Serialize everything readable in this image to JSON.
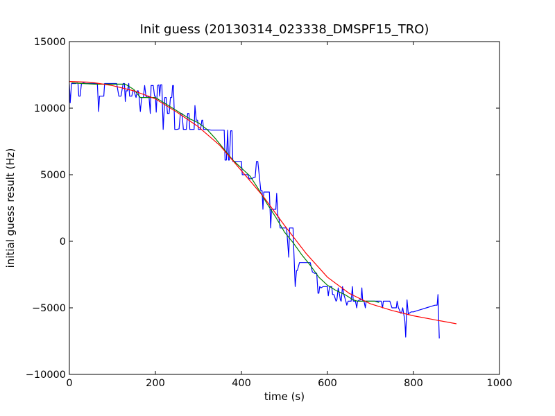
{
  "chart_data": {
    "type": "line",
    "title": "Init guess (20130314_023338_DMSPF15_TRO)",
    "xlabel": "time (s)",
    "ylabel": "initial guess result (Hz)",
    "xlim": [
      0,
      1000
    ],
    "ylim": [
      -10000,
      15000
    ],
    "x_ticks": [
      0,
      200,
      400,
      600,
      800,
      1000
    ],
    "y_ticks": [
      -10000,
      -5000,
      0,
      5000,
      10000,
      15000
    ],
    "x_tick_labels": [
      "0",
      "200",
      "400",
      "600",
      "800",
      "1000"
    ],
    "y_tick_labels": [
      "−10000",
      "−5000",
      "0",
      "5000",
      "10000",
      "15000"
    ],
    "grid": false,
    "legend": "none",
    "series": [
      {
        "color": "#0000ff",
        "points": [
          [
            0,
            11800
          ],
          [
            2,
            10400
          ],
          [
            5,
            11850
          ],
          [
            8,
            11850
          ],
          [
            15,
            11850
          ],
          [
            18,
            11900
          ],
          [
            20,
            11850
          ],
          [
            22,
            10900
          ],
          [
            25,
            10900
          ],
          [
            28,
            11850
          ],
          [
            30,
            11850
          ],
          [
            32,
            11900
          ],
          [
            38,
            11850
          ],
          [
            40,
            11850
          ],
          [
            45,
            11850
          ],
          [
            50,
            11850
          ],
          [
            55,
            11850
          ],
          [
            60,
            11850
          ],
          [
            65,
            11850
          ],
          [
            68,
            9750
          ],
          [
            70,
            10900
          ],
          [
            72,
            10900
          ],
          [
            80,
            10900
          ],
          [
            82,
            11850
          ],
          [
            90,
            11850
          ],
          [
            95,
            11850
          ],
          [
            100,
            11850
          ],
          [
            105,
            11850
          ],
          [
            110,
            11850
          ],
          [
            115,
            10900
          ],
          [
            120,
            10900
          ],
          [
            125,
            11850
          ],
          [
            128,
            11850
          ],
          [
            130,
            10500
          ],
          [
            132,
            11300
          ],
          [
            135,
            11300
          ],
          [
            138,
            11850
          ],
          [
            140,
            10900
          ],
          [
            145,
            10900
          ],
          [
            148,
            11300
          ],
          [
            150,
            11300
          ],
          [
            155,
            10800
          ],
          [
            158,
            11300
          ],
          [
            160,
            11300
          ],
          [
            162,
            10900
          ],
          [
            165,
            9750
          ],
          [
            168,
            10800
          ],
          [
            172,
            10800
          ],
          [
            175,
            11700
          ],
          [
            178,
            10900
          ],
          [
            182,
            10800
          ],
          [
            185,
            10900
          ],
          [
            188,
            9600
          ],
          [
            190,
            11700
          ],
          [
            195,
            11700
          ],
          [
            198,
            10900
          ],
          [
            200,
            10900
          ],
          [
            202,
            9700
          ],
          [
            205,
            11700
          ],
          [
            208,
            11750
          ],
          [
            210,
            10900
          ],
          [
            212,
            11750
          ],
          [
            215,
            11750
          ],
          [
            218,
            8400
          ],
          [
            222,
            10800
          ],
          [
            225,
            10800
          ],
          [
            228,
            9600
          ],
          [
            232,
            9600
          ],
          [
            235,
            10800
          ],
          [
            238,
            10800
          ],
          [
            240,
            11700
          ],
          [
            242,
            11700
          ],
          [
            245,
            8400
          ],
          [
            250,
            8400
          ],
          [
            255,
            8450
          ],
          [
            258,
            9600
          ],
          [
            262,
            9600
          ],
          [
            265,
            8400
          ],
          [
            270,
            8400
          ],
          [
            272,
            8400
          ],
          [
            275,
            9600
          ],
          [
            278,
            9600
          ],
          [
            280,
            8400
          ],
          [
            285,
            8400
          ],
          [
            290,
            8400
          ],
          [
            292,
            10200
          ],
          [
            295,
            9100
          ],
          [
            298,
            9100
          ],
          [
            300,
            8400
          ],
          [
            305,
            8400
          ],
          [
            308,
            9100
          ],
          [
            310,
            9100
          ],
          [
            312,
            8400
          ],
          [
            320,
            8400
          ],
          [
            330,
            8350
          ],
          [
            340,
            8350
          ],
          [
            350,
            8350
          ],
          [
            360,
            8350
          ],
          [
            362,
            6100
          ],
          [
            365,
            6100
          ],
          [
            368,
            8350
          ],
          [
            370,
            6100
          ],
          [
            372,
            6100
          ],
          [
            375,
            8300
          ],
          [
            378,
            8300
          ],
          [
            380,
            6000
          ],
          [
            385,
            6000
          ],
          [
            390,
            6000
          ],
          [
            395,
            6000
          ],
          [
            400,
            6000
          ],
          [
            402,
            5000
          ],
          [
            405,
            5000
          ],
          [
            410,
            5000
          ],
          [
            415,
            5000
          ],
          [
            418,
            4700
          ],
          [
            420,
            4700
          ],
          [
            425,
            4700
          ],
          [
            428,
            4800
          ],
          [
            432,
            4800
          ],
          [
            435,
            6000
          ],
          [
            438,
            6000
          ],
          [
            442,
            4800
          ],
          [
            445,
            3800
          ],
          [
            448,
            3800
          ],
          [
            450,
            2400
          ],
          [
            452,
            3700
          ],
          [
            455,
            3700
          ],
          [
            460,
            3700
          ],
          [
            465,
            3700
          ],
          [
            468,
            1000
          ],
          [
            470,
            2400
          ],
          [
            472,
            2400
          ],
          [
            475,
            2400
          ],
          [
            480,
            2400
          ],
          [
            482,
            3600
          ],
          [
            485,
            1800
          ],
          [
            487,
            1800
          ],
          [
            490,
            1000
          ],
          [
            495,
            1000
          ],
          [
            500,
            1000
          ],
          [
            505,
            1000
          ],
          [
            510,
            -1200
          ],
          [
            512,
            1000
          ],
          [
            515,
            1000
          ],
          [
            520,
            1000
          ],
          [
            522,
            -800
          ],
          [
            525,
            -3400
          ],
          [
            528,
            -2200
          ],
          [
            530,
            -2200
          ],
          [
            535,
            -1600
          ],
          [
            540,
            -1600
          ],
          [
            545,
            -1600
          ],
          [
            550,
            -1600
          ],
          [
            555,
            -1600
          ],
          [
            560,
            -1600
          ],
          [
            565,
            -2300
          ],
          [
            570,
            -2400
          ],
          [
            575,
            -2400
          ],
          [
            578,
            -3900
          ],
          [
            580,
            -3900
          ],
          [
            582,
            -3400
          ],
          [
            585,
            -3500
          ],
          [
            590,
            -3400
          ],
          [
            595,
            -3400
          ],
          [
            600,
            -3400
          ],
          [
            602,
            -4100
          ],
          [
            605,
            -3400
          ],
          [
            610,
            -3400
          ],
          [
            612,
            -4000
          ],
          [
            615,
            -4000
          ],
          [
            620,
            -4500
          ],
          [
            622,
            -4400
          ],
          [
            625,
            -3500
          ],
          [
            628,
            -4000
          ],
          [
            630,
            -4400
          ],
          [
            632,
            -4500
          ],
          [
            635,
            -3400
          ],
          [
            638,
            -4000
          ],
          [
            642,
            -4400
          ],
          [
            645,
            -4800
          ],
          [
            648,
            -4500
          ],
          [
            650,
            -4500
          ],
          [
            655,
            -4500
          ],
          [
            658,
            -3400
          ],
          [
            660,
            -4500
          ],
          [
            665,
            -4500
          ],
          [
            668,
            -5000
          ],
          [
            670,
            -4500
          ],
          [
            675,
            -4400
          ],
          [
            678,
            -4400
          ],
          [
            680,
            -3500
          ],
          [
            682,
            -4500
          ],
          [
            685,
            -4500
          ],
          [
            688,
            -5000
          ],
          [
            690,
            -4500
          ],
          [
            695,
            -4500
          ],
          [
            700,
            -4500
          ],
          [
            710,
            -4500
          ],
          [
            720,
            -4500
          ],
          [
            725,
            -4500
          ],
          [
            728,
            -5000
          ],
          [
            730,
            -4500
          ],
          [
            735,
            -4500
          ],
          [
            740,
            -4500
          ],
          [
            745,
            -4500
          ],
          [
            750,
            -5000
          ],
          [
            755,
            -5000
          ],
          [
            760,
            -5000
          ],
          [
            762,
            -4500
          ],
          [
            765,
            -5000
          ],
          [
            768,
            -5200
          ],
          [
            770,
            -5400
          ],
          [
            772,
            -5400
          ],
          [
            775,
            -5000
          ],
          [
            778,
            -5600
          ],
          [
            780,
            -6000
          ],
          [
            782,
            -7200
          ],
          [
            785,
            -4400
          ],
          [
            788,
            -5500
          ],
          [
            790,
            -5400
          ],
          [
            795,
            -5300
          ],
          [
            800,
            -5300
          ],
          [
            810,
            -5200
          ],
          [
            820,
            -5100
          ],
          [
            830,
            -5000
          ],
          [
            840,
            -4900
          ],
          [
            850,
            -4800
          ],
          [
            855,
            -4800
          ],
          [
            857,
            -4000
          ],
          [
            860,
            -7300
          ]
        ]
      },
      {
        "color": "#008000",
        "points": [
          [
            5,
            11900
          ],
          [
            30,
            11850
          ],
          [
            60,
            11800
          ],
          [
            100,
            11800
          ],
          [
            130,
            11800
          ],
          [
            150,
            11400
          ],
          [
            165,
            10800
          ],
          [
            180,
            10800
          ],
          [
            200,
            10800
          ],
          [
            220,
            10400
          ],
          [
            240,
            10000
          ],
          [
            260,
            9600
          ],
          [
            280,
            9200
          ],
          [
            300,
            8900
          ],
          [
            320,
            8400
          ],
          [
            340,
            7700
          ],
          [
            360,
            6900
          ],
          [
            380,
            6100
          ],
          [
            400,
            5500
          ],
          [
            420,
            4900
          ],
          [
            440,
            3900
          ],
          [
            460,
            2800
          ],
          [
            480,
            1800
          ],
          [
            500,
            700
          ],
          [
            520,
            -100
          ],
          [
            540,
            -1000
          ],
          [
            560,
            -1800
          ],
          [
            580,
            -2700
          ],
          [
            600,
            -3300
          ],
          [
            620,
            -3700
          ],
          [
            640,
            -4000
          ],
          [
            660,
            -4400
          ],
          [
            670,
            -4500
          ],
          [
            690,
            -4500
          ],
          [
            710,
            -4500
          ],
          [
            720,
            -4600
          ]
        ]
      },
      {
        "color": "#ff0000",
        "points": [
          [
            0,
            12000
          ],
          [
            50,
            11950
          ],
          [
            100,
            11700
          ],
          [
            150,
            11300
          ],
          [
            200,
            10700
          ],
          [
            250,
            9700
          ],
          [
            300,
            8600
          ],
          [
            350,
            7200
          ],
          [
            400,
            5300
          ],
          [
            450,
            3400
          ],
          [
            500,
            1200
          ],
          [
            550,
            -900
          ],
          [
            600,
            -2700
          ],
          [
            650,
            -3900
          ],
          [
            700,
            -4700
          ],
          [
            750,
            -5200
          ],
          [
            800,
            -5600
          ],
          [
            850,
            -5900
          ],
          [
            900,
            -6200
          ]
        ]
      }
    ]
  }
}
